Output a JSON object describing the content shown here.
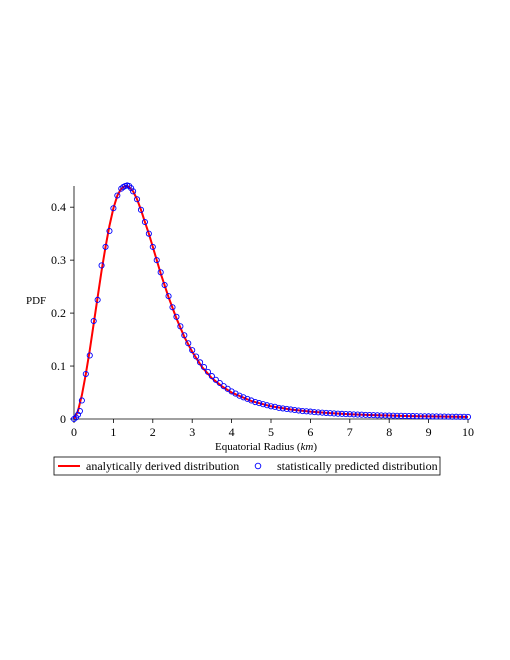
{
  "chart_data": {
    "type": "line",
    "title": "",
    "xlabel_main": "Equatorial Radius (",
    "xlabel_unit": "km",
    "xlabel_close": ")",
    "ylabel": "PDF",
    "xlim": [
      0,
      10
    ],
    "ylim": [
      0,
      0.44
    ],
    "x_ticks": [
      0,
      1,
      2,
      3,
      4,
      5,
      6,
      7,
      8,
      9,
      10
    ],
    "x_tick_labels": [
      "0",
      "1",
      "2",
      "3",
      "4",
      "5",
      "6",
      "7",
      "8",
      "9",
      "10"
    ],
    "y_ticks": [
      0,
      0.1,
      0.2,
      0.3,
      0.4
    ],
    "y_tick_labels": [
      "0",
      "0.1",
      "0.2",
      "0.3",
      "0.4"
    ],
    "grid": false,
    "legend_position": "bottom",
    "series": [
      {
        "name": "analytically derived distribution",
        "style": "line",
        "color": "#ff0000",
        "x": [
          0,
          0.1,
          0.2,
          0.3,
          0.4,
          0.5,
          0.6,
          0.7,
          0.8,
          0.9,
          1.0,
          1.1,
          1.2,
          1.3,
          1.35,
          1.4,
          1.5,
          1.6,
          1.7,
          1.8,
          1.9,
          2.0,
          2.2,
          2.4,
          2.6,
          2.8,
          3.0,
          3.25,
          3.5,
          3.75,
          4.0,
          4.5,
          5.0,
          5.5,
          6.0,
          6.5,
          7.0,
          7.5,
          8.0,
          8.5,
          9.0,
          9.5,
          10.0
        ],
        "y": [
          0,
          0.015,
          0.045,
          0.085,
          0.13,
          0.18,
          0.23,
          0.28,
          0.325,
          0.365,
          0.398,
          0.422,
          0.435,
          0.44,
          0.44,
          0.438,
          0.43,
          0.415,
          0.395,
          0.372,
          0.35,
          0.325,
          0.275,
          0.23,
          0.19,
          0.155,
          0.127,
          0.098,
          0.077,
          0.062,
          0.05,
          0.034,
          0.024,
          0.018,
          0.014,
          0.011,
          0.009,
          0.0075,
          0.0065,
          0.0055,
          0.005,
          0.0045,
          0.004
        ]
      },
      {
        "name": "statistically predicted distribution",
        "style": "markers",
        "color": "#0000ff",
        "x": [
          0,
          0.05,
          0.1,
          0.15,
          0.2,
          0.3,
          0.4,
          0.5,
          0.6,
          0.7,
          0.8,
          0.9,
          1.0,
          1.1,
          1.2,
          1.25,
          1.3,
          1.35,
          1.4,
          1.45,
          1.5,
          1.6,
          1.7,
          1.8,
          1.9,
          2.0,
          2.1,
          2.2,
          2.3,
          2.4,
          2.5,
          2.6,
          2.7,
          2.8,
          2.9,
          3.0,
          3.1,
          3.2,
          3.3,
          3.4,
          3.5,
          3.6,
          3.7,
          3.8,
          3.9,
          4.0,
          4.1,
          4.2,
          4.3,
          4.4,
          4.5,
          4.6,
          4.7,
          4.8,
          4.9,
          5.0,
          5.1,
          5.2,
          5.3,
          5.4,
          5.5,
          5.6,
          5.7,
          5.8,
          5.9,
          6.0,
          6.1,
          6.2,
          6.3,
          6.4,
          6.5,
          6.6,
          6.7,
          6.8,
          6.9,
          7.0,
          7.1,
          7.2,
          7.3,
          7.4,
          7.5,
          7.6,
          7.7,
          7.8,
          7.9,
          8.0,
          8.1,
          8.2,
          8.3,
          8.4,
          8.5,
          8.6,
          8.7,
          8.8,
          8.9,
          9.0,
          9.1,
          9.2,
          9.3,
          9.4,
          9.5,
          9.6,
          9.7,
          9.8,
          9.9,
          10.0
        ],
        "y": [
          0,
          0.003,
          0.008,
          0.015,
          0.035,
          0.085,
          0.12,
          0.185,
          0.225,
          0.29,
          0.325,
          0.355,
          0.398,
          0.422,
          0.435,
          0.438,
          0.44,
          0.441,
          0.44,
          0.436,
          0.43,
          0.415,
          0.395,
          0.372,
          0.35,
          0.325,
          0.3,
          0.277,
          0.253,
          0.232,
          0.211,
          0.193,
          0.175,
          0.158,
          0.143,
          0.13,
          0.118,
          0.107,
          0.098,
          0.089,
          0.081,
          0.074,
          0.068,
          0.062,
          0.057,
          0.052,
          0.048,
          0.044,
          0.041,
          0.038,
          0.035,
          0.032,
          0.03,
          0.028,
          0.026,
          0.024,
          0.023,
          0.021,
          0.02,
          0.019,
          0.018,
          0.017,
          0.016,
          0.015,
          0.0145,
          0.014,
          0.013,
          0.0125,
          0.012,
          0.0115,
          0.011,
          0.0105,
          0.01,
          0.0097,
          0.0093,
          0.009,
          0.0087,
          0.0084,
          0.0081,
          0.0078,
          0.0075,
          0.0073,
          0.007,
          0.0068,
          0.0066,
          0.0065,
          0.0063,
          0.0061,
          0.006,
          0.0058,
          0.0056,
          0.0055,
          0.0053,
          0.0052,
          0.0051,
          0.005,
          0.0049,
          0.0048,
          0.0047,
          0.0046,
          0.0045,
          0.0044,
          0.0043,
          0.0042,
          0.0041,
          0.004
        ]
      }
    ]
  }
}
